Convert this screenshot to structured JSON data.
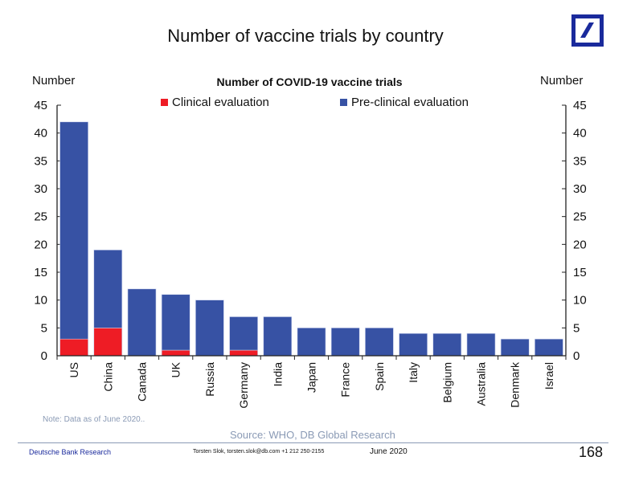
{
  "header": {
    "title": "Number of vaccine trials by country",
    "logo_icon": "deutsche-bank-logo-icon"
  },
  "chart_data": {
    "type": "bar",
    "stacked": true,
    "title": "Number of COVID-19 vaccine trials",
    "ylabel_left": "Number",
    "ylabel_right": "Number",
    "ylim": [
      0,
      45
    ],
    "yticks": [
      0,
      5,
      10,
      15,
      20,
      25,
      30,
      35,
      40,
      45
    ],
    "categories": [
      "US",
      "China",
      "Canada",
      "UK",
      "Russia",
      "Germany",
      "India",
      "Japan",
      "France",
      "Spain",
      "Italy",
      "Belgium",
      "Australia",
      "Denmark",
      "Israel"
    ],
    "series": [
      {
        "name": "Clinical evaluation",
        "color": "#ee1c25",
        "values": [
          3,
          5,
          0,
          1,
          0,
          1,
          0,
          0,
          0,
          0,
          0,
          0,
          0,
          0,
          0
        ]
      },
      {
        "name": "Pre-clinical evaluation",
        "color": "#3752a4",
        "values": [
          39,
          14,
          12,
          10,
          10,
          6,
          7,
          5,
          5,
          5,
          4,
          4,
          4,
          3,
          3
        ]
      }
    ],
    "legend_position": "top"
  },
  "footer": {
    "note": "Note: Data as of June 2020..",
    "source": "Source: WHO, DB Global Research",
    "org": "Deutsche Bank Research",
    "contact": "Torsten Slok, torsten.slok@db.com  +1 212 250-2155",
    "date": "June 2020",
    "page_number": "168"
  }
}
